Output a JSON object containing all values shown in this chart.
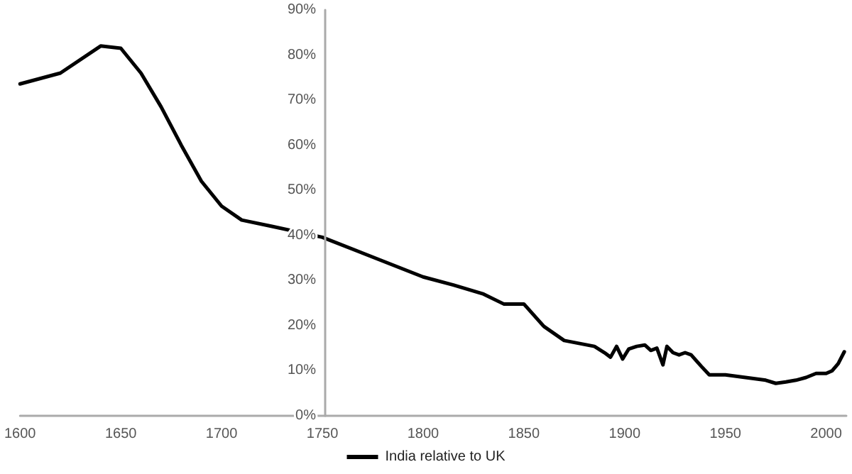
{
  "chart_data": {
    "type": "line",
    "x": [
      1600,
      1620,
      1640,
      1650,
      1660,
      1670,
      1680,
      1690,
      1700,
      1710,
      1725,
      1750,
      1800,
      1815,
      1830,
      1840,
      1850,
      1860,
      1870,
      1885,
      1890,
      1893,
      1896,
      1899,
      1902,
      1906,
      1910,
      1913,
      1916,
      1919,
      1921,
      1924,
      1927,
      1930,
      1933,
      1938,
      1942,
      1950,
      1960,
      1970,
      1975,
      1980,
      1985,
      1990,
      1995,
      2000,
      2003,
      2006,
      2009
    ],
    "series": [
      {
        "name": "India relative to UK",
        "color": "#000000",
        "values": [
          73.6,
          76,
          82,
          81.5,
          76,
          68.5,
          60,
          52,
          46.5,
          43.4,
          42,
          39.6,
          30.8,
          29,
          27,
          24.8,
          24.8,
          19.8,
          16.7,
          15.4,
          14,
          13,
          15.4,
          12.6,
          14.8,
          15.4,
          15.7,
          14.5,
          15,
          11.3,
          15.4,
          14,
          13.5,
          14,
          13.5,
          11,
          9.1,
          9.1,
          8.5,
          7.9,
          7.2,
          7.5,
          7.9,
          8.5,
          9.4,
          9.4,
          10,
          11.6,
          14.2
        ]
      }
    ],
    "xlim": [
      1600,
      2010
    ],
    "xticks": [
      1600,
      1650,
      1700,
      1750,
      1800,
      1850,
      1900,
      1950,
      2000
    ],
    "ylim": [
      0,
      90
    ],
    "yticks": [
      {
        "value": 0,
        "label": "0%"
      },
      {
        "value": 10,
        "label": "10%"
      },
      {
        "value": 20,
        "label": "20%"
      },
      {
        "value": 30,
        "label": "30%"
      },
      {
        "value": 40,
        "label": "40%"
      },
      {
        "value": 50,
        "label": "50%"
      },
      {
        "value": 60,
        "label": "60%"
      },
      {
        "value": 70,
        "label": "70%"
      },
      {
        "value": 80,
        "label": "80%"
      },
      {
        "value": 90,
        "label": "90%"
      }
    ],
    "grid": false,
    "legend": "bottom",
    "marker": "none",
    "line_style": "solid"
  }
}
